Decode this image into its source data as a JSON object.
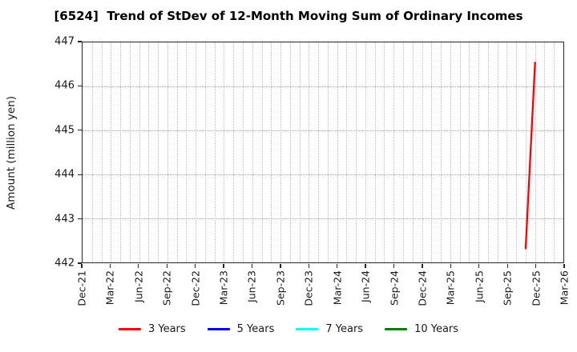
{
  "chart_data": {
    "type": "line",
    "title": "[6524]  Trend of StDev of 12-Month Moving Sum of Ordinary Incomes",
    "ylabel": "Amount (million yen)",
    "xlabel": "",
    "ylim": [
      442,
      447
    ],
    "yticks": [
      442,
      443,
      444,
      445,
      446,
      447
    ],
    "x_start": "Dec-21",
    "x_end": "Mar-26",
    "xticks": [
      "Dec-21",
      "Mar-22",
      "Jun-22",
      "Sep-22",
      "Dec-22",
      "Mar-23",
      "Jun-23",
      "Sep-23",
      "Dec-23",
      "Mar-24",
      "Jun-24",
      "Sep-24",
      "Dec-24",
      "Mar-25",
      "Jun-25",
      "Sep-25",
      "Dec-25",
      "Mar-26"
    ],
    "grid": {
      "visible": true,
      "style": "dotted",
      "vertical_interval": "monthly",
      "horizontal_interval": 1
    },
    "legend_position": "bottom",
    "series": [
      {
        "name": "3 Years",
        "color": "#ff0000",
        "points": [
          {
            "x": "Nov-25",
            "y": 442.32
          },
          {
            "x": "Dec-25",
            "y": 446.54
          }
        ]
      },
      {
        "name": "5 Years",
        "color": "#0000ff",
        "points": []
      },
      {
        "name": "7 Years",
        "color": "#00ffff",
        "points": []
      },
      {
        "name": "10 Years",
        "color": "#008000",
        "points": []
      }
    ],
    "colors": {
      "background": "#ffffff",
      "spine": "#262626",
      "grid_vertical": "#bdbdbd",
      "grid_horizontal": "#a3a3a3",
      "text": "#1a1a1a"
    }
  }
}
